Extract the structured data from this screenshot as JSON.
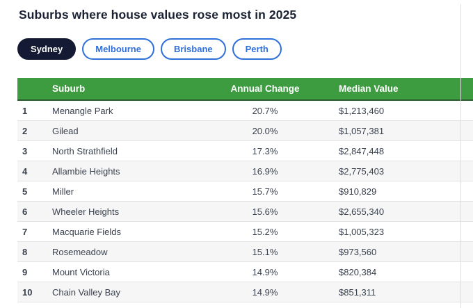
{
  "page": {
    "title": "Suburbs where house values rose most in 2025"
  },
  "tabs": [
    {
      "label": "Sydney",
      "active": true
    },
    {
      "label": "Melbourne",
      "active": false
    },
    {
      "label": "Brisbane",
      "active": false
    },
    {
      "label": "Perth",
      "active": false
    }
  ],
  "table": {
    "columns": [
      "Suburb",
      "Annual Change",
      "Median Value"
    ],
    "rows": [
      {
        "rank": "1",
        "suburb": "Menangle Park",
        "annual_change": "20.7%",
        "median_value": "$1,213,460"
      },
      {
        "rank": "2",
        "suburb": "Gilead",
        "annual_change": "20.0%",
        "median_value": "$1,057,381"
      },
      {
        "rank": "3",
        "suburb": "North Strathfield",
        "annual_change": "17.3%",
        "median_value": "$2,847,448"
      },
      {
        "rank": "4",
        "suburb": "Allambie Heights",
        "annual_change": "16.9%",
        "median_value": "$2,775,403"
      },
      {
        "rank": "5",
        "suburb": "Miller",
        "annual_change": "15.7%",
        "median_value": "$910,829"
      },
      {
        "rank": "6",
        "suburb": "Wheeler Heights",
        "annual_change": "15.6%",
        "median_value": "$2,655,340"
      },
      {
        "rank": "7",
        "suburb": "Macquarie Fields",
        "annual_change": "15.2%",
        "median_value": "$1,005,323"
      },
      {
        "rank": "8",
        "suburb": "Rosemeadow",
        "annual_change": "15.1%",
        "median_value": "$973,560"
      },
      {
        "rank": "9",
        "suburb": "Mount Victoria",
        "annual_change": "14.9%",
        "median_value": "$820,384"
      },
      {
        "rank": "10",
        "suburb": "Chain Valley Bay",
        "annual_change": "14.9%",
        "median_value": "$851,311"
      }
    ]
  },
  "colors": {
    "header_green": "#3d9b40",
    "active_tab_navy": "#141a33",
    "tab_blue": "#2e6fd9"
  }
}
